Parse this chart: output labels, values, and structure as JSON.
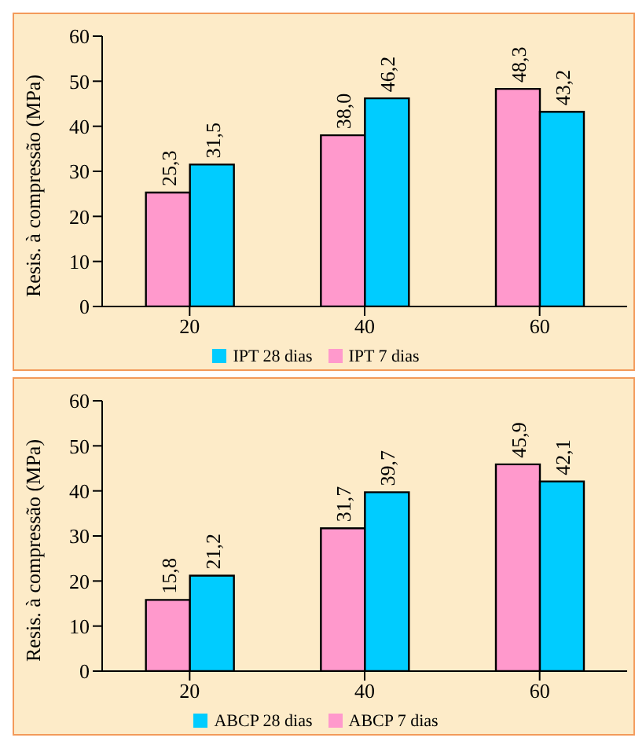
{
  "chart_data": [
    {
      "type": "bar",
      "ylabel": "Resis. à compressão (MPa)",
      "categories": [
        "20",
        "40",
        "60"
      ],
      "ylim": [
        0,
        60
      ],
      "yticks": [
        0,
        10,
        20,
        30,
        40,
        50,
        60
      ],
      "legend": "bottom",
      "grid": false,
      "series": [
        {
          "name": "IPT 7 dias",
          "color": "#ff99cc",
          "values": [
            25.3,
            38.0,
            48.3
          ],
          "value_labels": [
            "25,3",
            "38,0",
            "48,3"
          ]
        },
        {
          "name": "IPT 28 dias",
          "color": "#00ccff",
          "values": [
            31.5,
            46.2,
            43.2
          ],
          "value_labels": [
            "31,5",
            "46,2",
            "43,2"
          ]
        }
      ]
    },
    {
      "type": "bar",
      "ylabel": "Resis. à compressão (MPa)",
      "categories": [
        "20",
        "40",
        "60"
      ],
      "ylim": [
        0,
        60
      ],
      "yticks": [
        0,
        10,
        20,
        30,
        40,
        50,
        60
      ],
      "legend": "bottom",
      "grid": false,
      "series": [
        {
          "name": "ABCP 7 dias",
          "color": "#ff99cc",
          "values": [
            15.8,
            31.7,
            45.9
          ],
          "value_labels": [
            "15,8",
            "31,7",
            "45,9"
          ]
        },
        {
          "name": "ABCP 28 dias",
          "color": "#00ccff",
          "values": [
            21.2,
            39.7,
            42.1
          ],
          "value_labels": [
            "21,2",
            "39,7",
            "42,1"
          ]
        }
      ]
    }
  ]
}
